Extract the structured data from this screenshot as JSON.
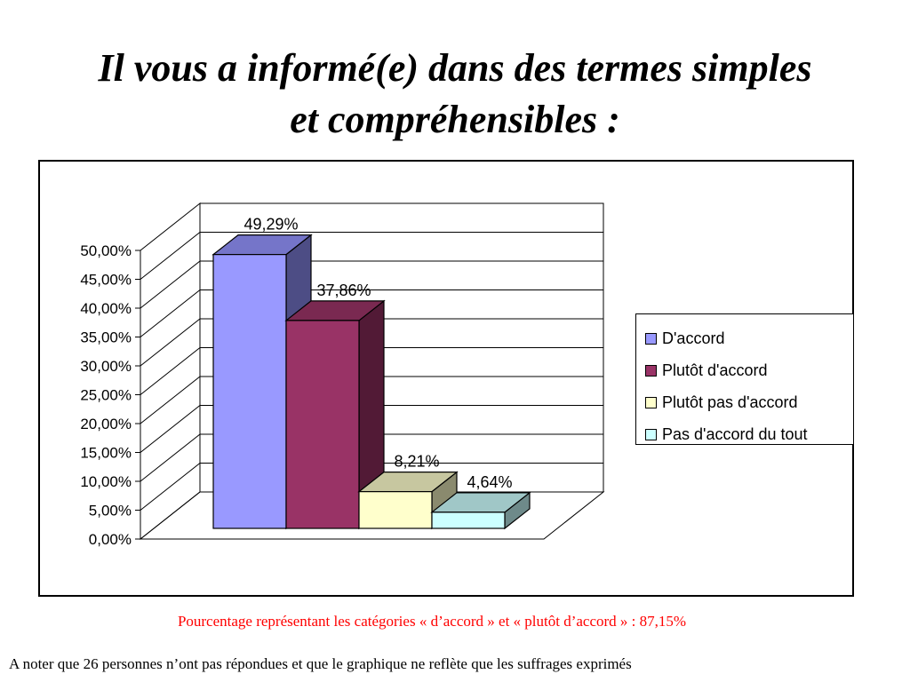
{
  "title": {
    "line1": "Il vous a informé(e) dans des termes simples",
    "line2": "et compréhensibles :"
  },
  "chart_data": {
    "type": "bar",
    "style": "3d-column",
    "categories": [
      "D'accord",
      "Plutôt d'accord",
      "Plutôt pas d'accord",
      "Pas d'accord du tout"
    ],
    "values": [
      49.29,
      37.86,
      8.21,
      4.64
    ],
    "data_labels": [
      "49,29%",
      "37,86%",
      "8,21%",
      "4,64%"
    ],
    "colors": [
      {
        "front": "#9999ff",
        "side": "#4d4d85",
        "top": "#7575c9"
      },
      {
        "front": "#993366",
        "side": "#521a36",
        "top": "#7a2951"
      },
      {
        "front": "#ffffcc",
        "side": "#8a8a6e",
        "top": "#c7c7a0"
      },
      {
        "front": "#ccffff",
        "side": "#6e8a8a",
        "top": "#a0c7c7"
      }
    ],
    "ylim": [
      0,
      50
    ],
    "yticks": [
      "0,00%",
      "5,00%",
      "10,00%",
      "15,00%",
      "20,00%",
      "25,00%",
      "30,00%",
      "35,00%",
      "40,00%",
      "45,00%",
      "50,00%"
    ],
    "grid": true,
    "legend": "right"
  },
  "notes": {
    "summary": "Pourcentage représentant les catégories « d’accord » et « plutôt d’accord » : 87,15%",
    "footnote": "A noter que 26 personnes n’ont pas répondues et que le graphique ne reflète que les suffrages exprimés"
  }
}
